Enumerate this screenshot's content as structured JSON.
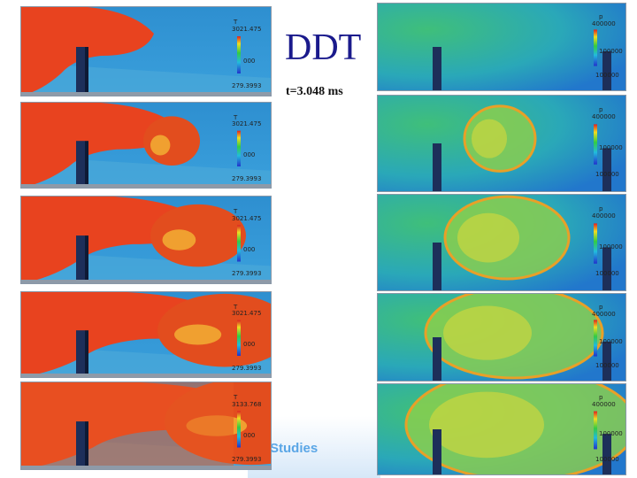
{
  "slide": {
    "title": "DDT",
    "subtitle": "t=3.048 ms",
    "footer": "Studies"
  },
  "temperature_panels": [
    {
      "var": "T",
      "max": "3021.475",
      "mid": "000",
      "min": "279.3993"
    },
    {
      "var": "T",
      "max": "3021.475",
      "mid": "000",
      "min": "279.3993"
    },
    {
      "var": "T",
      "max": "3021.475",
      "mid": "000",
      "min": "279.3993"
    },
    {
      "var": "T",
      "max": "3021.475",
      "mid": "000",
      "min": "279.3993"
    },
    {
      "var": "T",
      "max": "3133.768",
      "mid": "000",
      "min": "279.3993"
    }
  ],
  "pressure_panels": [
    {
      "var": "p",
      "max": "400000",
      "mid": "100000",
      "min": "100000"
    },
    {
      "var": "p",
      "max": "400000",
      "mid": "100000",
      "min": "100000"
    },
    {
      "var": "p",
      "max": "400000",
      "mid": "100000",
      "min": "100000"
    },
    {
      "var": "p",
      "max": "400000",
      "mid": "100000",
      "min": "100000"
    },
    {
      "var": "p",
      "max": "400000",
      "mid": "100000",
      "min": "100000"
    }
  ],
  "colors": {
    "title": "#1a1a8c",
    "hot_gas": "#e8431f",
    "cold_gas": "#3a9ad6",
    "pressure_field": "#2fb6a8",
    "pressure_front": "#e5d23a",
    "footer_text": "#5aa6e6"
  }
}
